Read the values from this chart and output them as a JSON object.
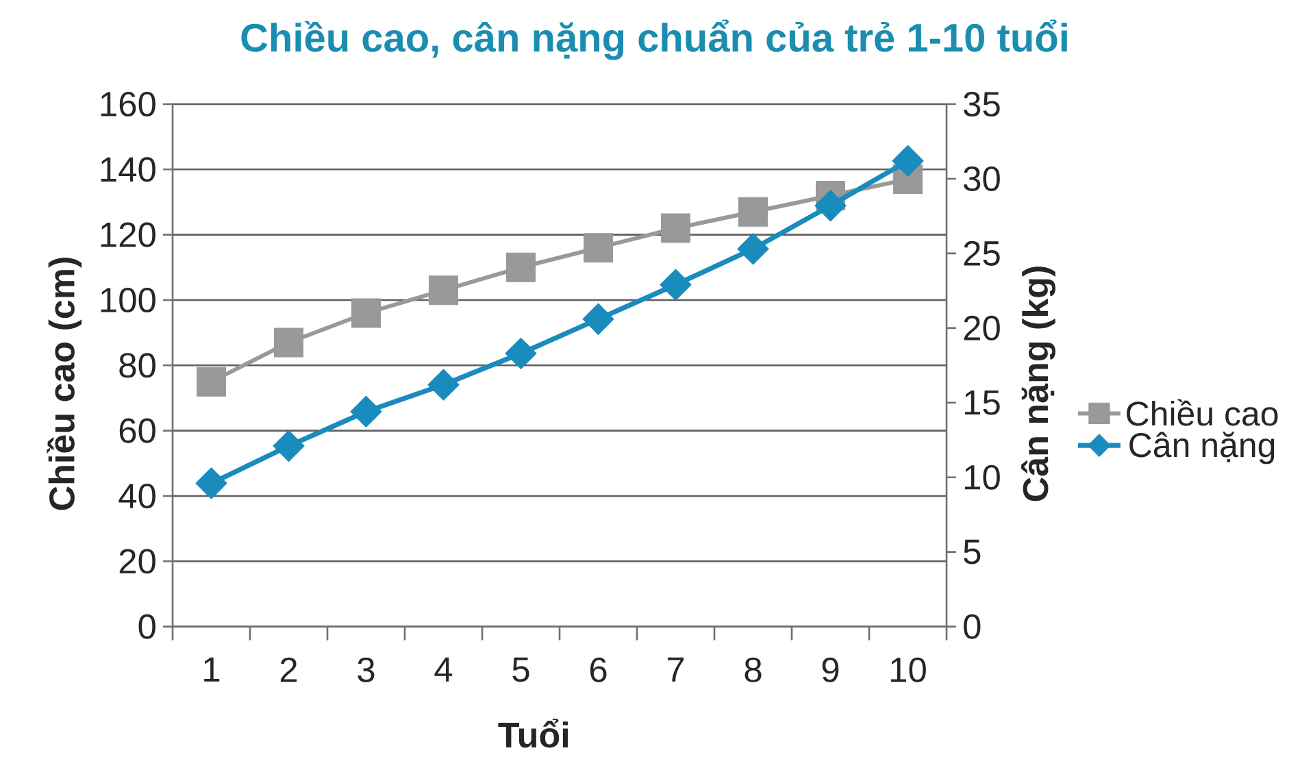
{
  "chart_data": {
    "type": "line",
    "title": "Chiều cao, cân nặng chuẩn của trẻ 1-10 tuổi",
    "xlabel": "Tuổi",
    "ylabel": "Chiều cao (cm)",
    "y2label": "Cân nặng (kg)",
    "categories": [
      "1",
      "2",
      "3",
      "4",
      "5",
      "6",
      "7",
      "8",
      "9",
      "10"
    ],
    "series": [
      {
        "name": "Chiều cao",
        "color": "#999999",
        "marker": "square",
        "values": [
          75,
          87,
          96,
          103,
          110,
          116,
          122,
          127,
          132,
          137
        ]
      },
      {
        "name": "Cân nặng",
        "color": "#1a8bbd",
        "marker": "diamond",
        "axis": "y2",
        "values": [
          9.6,
          12.1,
          14.4,
          16.2,
          18.3,
          20.6,
          22.9,
          25.3,
          28.2,
          31.2
        ]
      }
    ],
    "ylim": [
      0,
      160
    ],
    "yticks": [
      0,
      20,
      40,
      60,
      80,
      100,
      120,
      140,
      160
    ],
    "y2lim": [
      0,
      35
    ],
    "y2ticks": [
      0,
      5,
      10,
      15,
      20,
      25,
      30,
      35
    ],
    "grid": "y",
    "legend": "right"
  }
}
